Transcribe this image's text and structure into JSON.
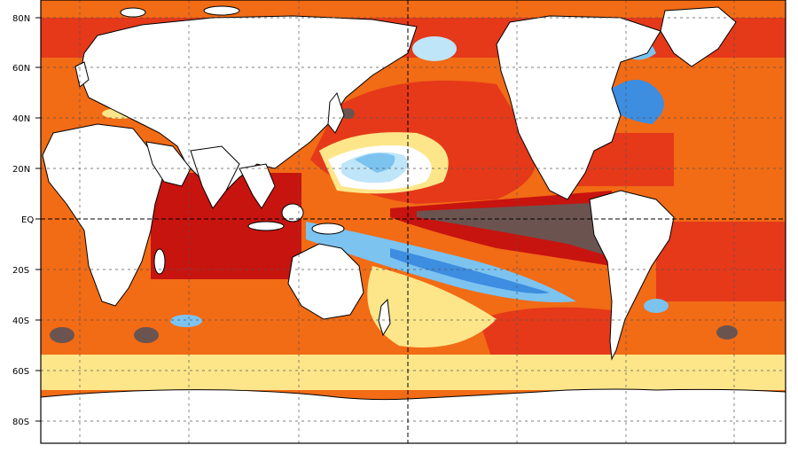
{
  "map": {
    "lat_labels": [
      "80N",
      "60N",
      "40N",
      "20N",
      "EQ",
      "20S",
      "40S",
      "60S",
      "80S"
    ],
    "colors": {
      "very_warm": "#6b5450",
      "warm_dark": "#c7140f",
      "warm": "#e5391a",
      "warm_mid": "#f26b15",
      "warm_light": "#f7a94a",
      "warm_faint": "#fde68a",
      "cool_faint": "#bfe5f8",
      "cool": "#7cc3f0",
      "cool_mid": "#3d8de0",
      "cool_dark": "#1f5fc9",
      "land": "#ffffff",
      "coast": "#000000",
      "grid": "#555555"
    }
  }
}
